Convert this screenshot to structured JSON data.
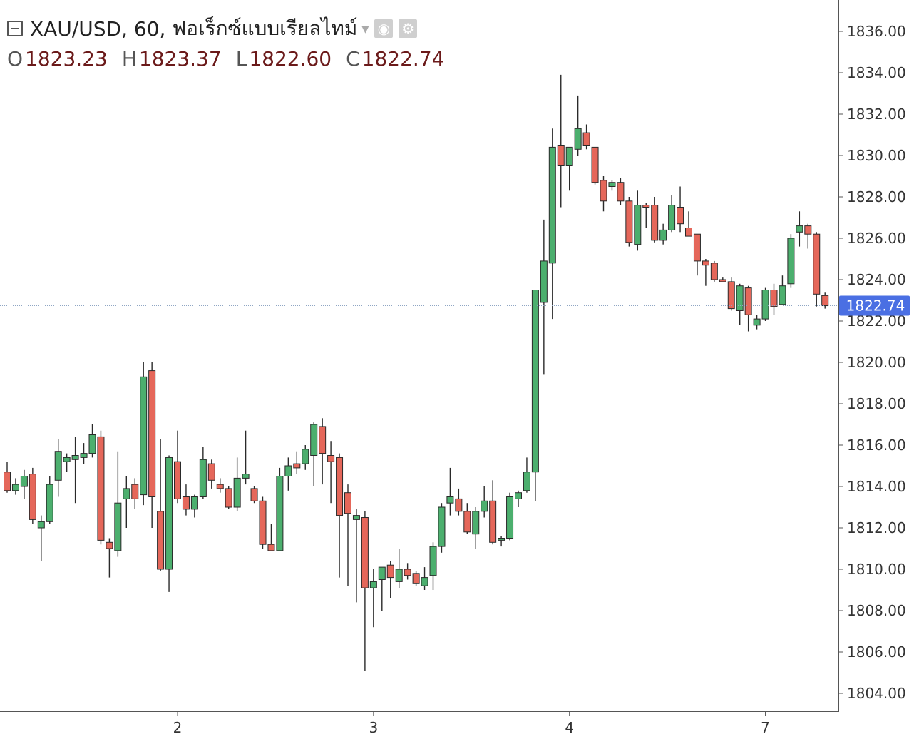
{
  "legend": {
    "symbol": "XAU/USD",
    "interval": "60",
    "source": "ฟอเร็กซ์แบบเรียลไทม์",
    "icons": {
      "collapse": "collapse-square-icon",
      "dropdown": "chevron-down-icon",
      "visibility": "eye-icon",
      "settings": "gear-icon"
    }
  },
  "ohlc": {
    "o_label": "O",
    "o": "1823.23",
    "h_label": "H",
    "h": "1823.37",
    "l_label": "L",
    "l": "1822.60",
    "c_label": "C",
    "c": "1822.74"
  },
  "last_price_label": "1822.74",
  "colors": {
    "up": "#4caf6e",
    "down": "#e5675a",
    "wick": "#2a2a2a",
    "price_line": "#8fa6c4",
    "price_badge": "#4a6fe3",
    "axis": "#555555"
  },
  "chart_data": {
    "type": "candlestick",
    "title": "XAU/USD, 60, ฟอเร็กซ์แบบเรียลไทม์",
    "ylim": [
      1803,
      1837
    ],
    "y_ticks": [
      1804,
      1806,
      1808,
      1810,
      1812,
      1814,
      1816,
      1818,
      1820,
      1822,
      1824,
      1826,
      1828,
      1830,
      1832,
      1834,
      1836
    ],
    "y_tick_labels": [
      "1804.00",
      "1806.00",
      "1808.00",
      "1810.00",
      "1812.00",
      "1814.00",
      "1816.00",
      "1818.00",
      "1820.00",
      "1822.00",
      "1824.00",
      "1826.00",
      "1828.00",
      "1830.00",
      "1832.00",
      "1834.00",
      "1836.00"
    ],
    "x_ticks": [
      {
        "label": "2",
        "index": 20
      },
      {
        "label": "3",
        "index": 43
      },
      {
        "label": "4",
        "index": 66
      },
      {
        "label": "7",
        "index": 89
      }
    ],
    "last_price": 1822.74,
    "candles": [
      [
        1814.7,
        1815.2,
        1813.7,
        1813.8
      ],
      [
        1813.8,
        1814.4,
        1813.6,
        1814.1
      ],
      [
        1814.0,
        1814.8,
        1813.4,
        1814.5
      ],
      [
        1814.6,
        1814.9,
        1812.2,
        1812.4
      ],
      [
        1812.0,
        1812.6,
        1810.4,
        1812.3
      ],
      [
        1812.3,
        1814.5,
        1812.2,
        1814.1
      ],
      [
        1814.3,
        1816.3,
        1813.5,
        1815.7
      ],
      [
        1815.2,
        1815.6,
        1814.7,
        1815.4
      ],
      [
        1815.3,
        1816.4,
        1813.2,
        1815.5
      ],
      [
        1815.4,
        1816.1,
        1815.1,
        1815.6
      ],
      [
        1815.6,
        1817.0,
        1815.4,
        1816.5
      ],
      [
        1816.4,
        1816.7,
        1811.2,
        1811.4
      ],
      [
        1811.3,
        1811.5,
        1809.6,
        1811.0
      ],
      [
        1810.9,
        1815.7,
        1810.6,
        1813.2
      ],
      [
        1813.4,
        1814.5,
        1812.0,
        1813.9
      ],
      [
        1814.1,
        1814.4,
        1812.9,
        1813.4
      ],
      [
        1813.6,
        1820.0,
        1813.1,
        1819.3
      ],
      [
        1819.6,
        1820.0,
        1812.0,
        1813.5
      ],
      [
        1812.8,
        1816.3,
        1809.9,
        1810.0
      ],
      [
        1810.0,
        1815.5,
        1808.9,
        1815.4
      ],
      [
        1815.2,
        1816.7,
        1813.2,
        1813.4
      ],
      [
        1813.5,
        1814.1,
        1812.6,
        1812.9
      ],
      [
        1812.9,
        1813.6,
        1812.5,
        1813.5
      ],
      [
        1813.5,
        1815.9,
        1813.4,
        1815.3
      ],
      [
        1815.1,
        1815.3,
        1813.9,
        1814.3
      ],
      [
        1814.1,
        1814.4,
        1813.7,
        1813.9
      ],
      [
        1813.9,
        1814.0,
        1812.9,
        1813.0
      ],
      [
        1813.0,
        1815.4,
        1812.8,
        1814.4
      ],
      [
        1814.4,
        1816.7,
        1814.1,
        1814.6
      ],
      [
        1813.9,
        1814.0,
        1813.2,
        1813.3
      ],
      [
        1813.3,
        1813.5,
        1811.0,
        1811.2
      ],
      [
        1811.2,
        1812.2,
        1810.9,
        1810.9
      ],
      [
        1810.9,
        1814.9,
        1810.9,
        1814.5
      ],
      [
        1814.5,
        1815.4,
        1813.8,
        1815.0
      ],
      [
        1815.1,
        1815.7,
        1814.6,
        1814.9
      ],
      [
        1815.1,
        1816.0,
        1814.8,
        1815.8
      ],
      [
        1815.5,
        1817.1,
        1814.0,
        1817.0
      ],
      [
        1816.9,
        1817.3,
        1814.1,
        1815.6
      ],
      [
        1815.5,
        1816.2,
        1813.2,
        1815.2
      ],
      [
        1815.4,
        1815.6,
        1809.6,
        1812.6
      ],
      [
        1813.7,
        1814.1,
        1809.2,
        1812.7
      ],
      [
        1812.4,
        1812.9,
        1808.4,
        1812.6
      ],
      [
        1812.5,
        1812.8,
        1805.1,
        1809.1
      ],
      [
        1809.1,
        1810.0,
        1807.2,
        1809.4
      ],
      [
        1809.5,
        1810.0,
        1808.0,
        1810.1
      ],
      [
        1810.2,
        1810.4,
        1808.6,
        1809.6
      ],
      [
        1809.4,
        1811.0,
        1809.1,
        1810.0
      ],
      [
        1810.0,
        1810.3,
        1809.5,
        1809.7
      ],
      [
        1809.8,
        1809.9,
        1809.2,
        1809.3
      ],
      [
        1809.2,
        1810.1,
        1809.0,
        1809.6
      ],
      [
        1809.7,
        1811.3,
        1809.0,
        1811.1
      ],
      [
        1811.1,
        1813.2,
        1810.8,
        1813.0
      ],
      [
        1813.2,
        1814.9,
        1812.6,
        1813.5
      ],
      [
        1813.4,
        1813.9,
        1812.6,
        1812.8
      ],
      [
        1812.8,
        1813.2,
        1811.7,
        1811.8
      ],
      [
        1811.7,
        1813.0,
        1811.0,
        1812.8
      ],
      [
        1812.8,
        1814.0,
        1812.5,
        1813.3
      ],
      [
        1813.3,
        1814.3,
        1811.2,
        1811.3
      ],
      [
        1811.4,
        1811.6,
        1811.1,
        1811.5
      ],
      [
        1811.5,
        1813.7,
        1811.4,
        1813.5
      ],
      [
        1813.4,
        1813.8,
        1813.0,
        1813.7
      ],
      [
        1813.8,
        1815.4,
        1813.7,
        1814.7
      ],
      [
        1814.7,
        1823.2,
        1813.3,
        1823.5
      ],
      [
        1822.9,
        1826.9,
        1819.4,
        1824.9
      ],
      [
        1824.8,
        1831.3,
        1822.1,
        1830.4
      ],
      [
        1830.5,
        1833.9,
        1827.5,
        1829.5
      ],
      [
        1829.5,
        1830.1,
        1828.3,
        1830.4
      ],
      [
        1830.3,
        1832.9,
        1830.0,
        1831.3
      ],
      [
        1831.1,
        1831.5,
        1830.3,
        1830.5
      ],
      [
        1830.4,
        1830.3,
        1828.6,
        1828.7
      ],
      [
        1828.8,
        1829.0,
        1827.3,
        1827.8
      ],
      [
        1828.5,
        1828.8,
        1828.3,
        1828.7
      ],
      [
        1828.7,
        1828.9,
        1827.6,
        1827.8
      ],
      [
        1827.8,
        1828.0,
        1825.6,
        1825.8
      ],
      [
        1825.7,
        1828.3,
        1825.4,
        1827.6
      ],
      [
        1827.6,
        1827.7,
        1826.5,
        1827.5
      ],
      [
        1827.6,
        1828.0,
        1825.8,
        1825.9
      ],
      [
        1825.9,
        1826.7,
        1825.7,
        1826.4
      ],
      [
        1826.4,
        1828.1,
        1826.3,
        1827.6
      ],
      [
        1827.5,
        1828.5,
        1826.3,
        1826.7
      ],
      [
        1826.5,
        1827.3,
        1826.2,
        1826.1
      ],
      [
        1826.2,
        1826.0,
        1824.2,
        1824.9
      ],
      [
        1824.9,
        1825.0,
        1823.7,
        1824.7
      ],
      [
        1824.8,
        1824.9,
        1823.9,
        1824.0
      ],
      [
        1824.0,
        1824.1,
        1823.9,
        1823.9
      ],
      [
        1823.9,
        1824.1,
        1822.5,
        1822.6
      ],
      [
        1822.5,
        1823.8,
        1821.8,
        1823.7
      ],
      [
        1823.6,
        1823.7,
        1821.5,
        1822.3
      ],
      [
        1821.8,
        1822.3,
        1821.6,
        1822.1
      ],
      [
        1822.1,
        1823.6,
        1822.0,
        1823.5
      ],
      [
        1823.5,
        1823.8,
        1822.3,
        1822.7
      ],
      [
        1822.8,
        1824.2,
        1822.8,
        1823.7
      ],
      [
        1823.8,
        1826.2,
        1823.6,
        1826.0
      ],
      [
        1826.3,
        1827.3,
        1825.6,
        1826.6
      ],
      [
        1826.6,
        1826.7,
        1825.5,
        1826.2
      ],
      [
        1826.2,
        1826.3,
        1822.7,
        1823.3
      ],
      [
        1823.23,
        1823.37,
        1822.6,
        1822.74
      ]
    ]
  }
}
